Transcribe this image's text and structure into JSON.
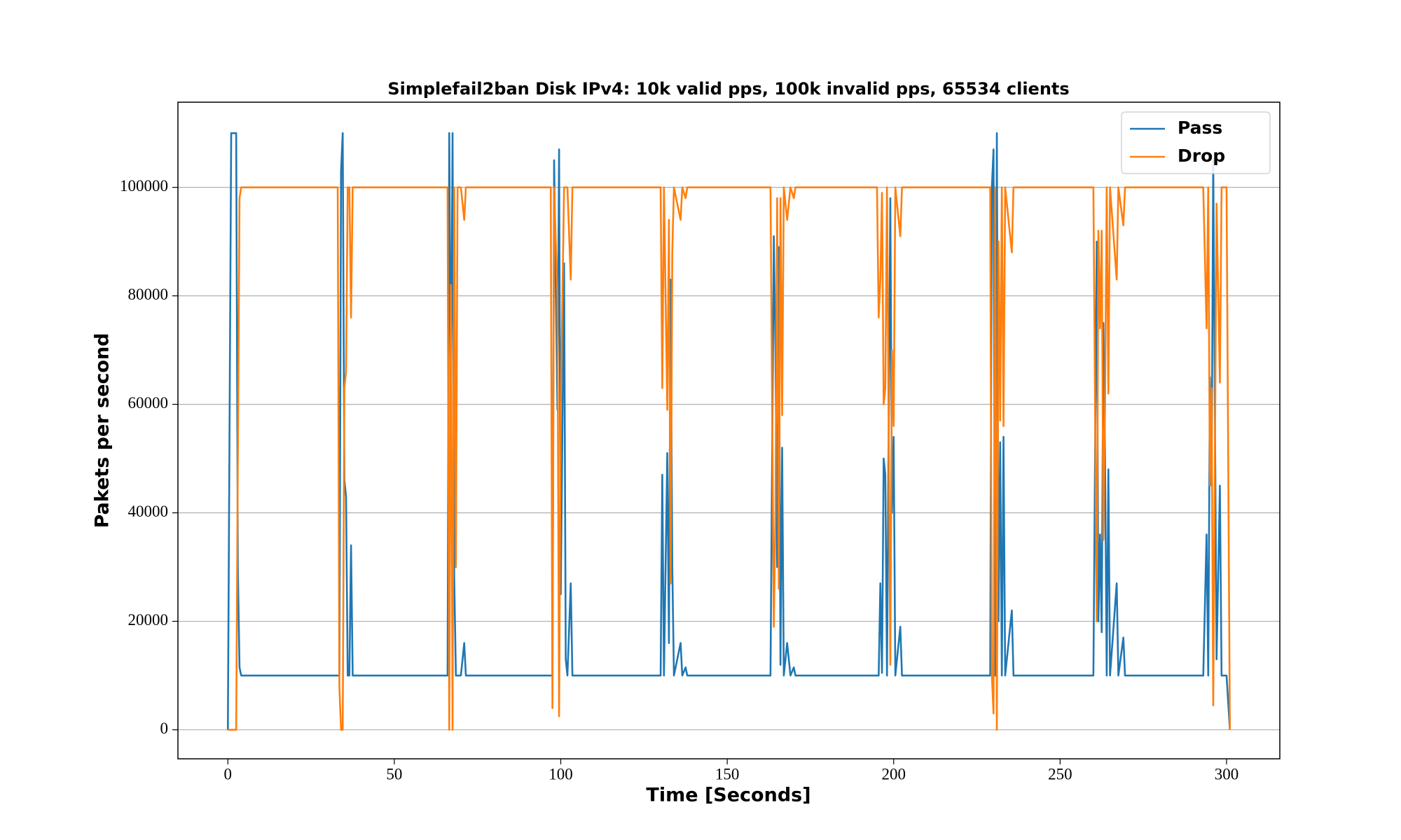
{
  "chart_data": {
    "type": "line",
    "title": "Simplefail2ban Disk IPv4:  10k valid pps, 100k invalid pps, 65534 clients",
    "x_label": "Time [Seconds]",
    "y_label": "Pakets per second",
    "x": [
      0,
      1,
      2.5,
      3,
      3.5,
      4,
      33,
      33.5,
      34,
      34.5,
      35,
      35.5,
      36,
      36.5,
      37,
      37.5,
      38,
      66,
      66.5,
      67,
      67.5,
      68,
      68.5,
      69,
      70,
      71,
      71.5,
      97,
      97.5,
      98,
      99,
      99.5,
      100,
      101,
      101.5,
      102,
      103,
      103.5,
      130,
      130.5,
      131,
      132,
      132.5,
      133,
      133.5,
      134,
      136,
      136.5,
      137.5,
      138,
      163,
      164,
      164.5,
      165,
      165.5,
      166,
      166.5,
      167,
      168,
      169,
      170,
      170.5,
      195,
      195.5,
      196,
      196.5,
      197,
      197.5,
      198,
      199,
      199.5,
      200,
      200.5,
      202,
      202.5,
      229,
      229.5,
      230,
      230.5,
      231,
      231.5,
      232,
      232.5,
      233,
      233.5,
      235.5,
      236,
      260,
      261,
      261.5,
      262,
      262.5,
      263,
      263.5,
      264,
      264.5,
      265,
      267,
      267.5,
      269,
      269.5,
      293,
      294,
      294.5,
      295,
      295.5,
      296,
      297,
      298,
      298.5,
      300,
      301
    ],
    "series": [
      {
        "name": "Pass",
        "color": "#1f77b4",
        "values": [
          0,
          110000,
          110000,
          30000,
          11500,
          10000,
          10000,
          10000,
          103000,
          110000,
          46000,
          43000,
          10000,
          10000,
          34000,
          10000,
          10000,
          10000,
          110000,
          60000,
          110000,
          28000,
          10000,
          10000,
          10000,
          16000,
          10000,
          10000,
          10000,
          105000,
          59000,
          107000,
          25000,
          86000,
          13000,
          10000,
          27000,
          10000,
          10000,
          47000,
          10000,
          51000,
          16000,
          83000,
          30000,
          10000,
          16000,
          10000,
          11500,
          10000,
          10000,
          91000,
          70000,
          30000,
          89000,
          12000,
          52000,
          10000,
          16000,
          10000,
          11500,
          10000,
          10000,
          10000,
          27000,
          10500,
          50000,
          47000,
          10000,
          98000,
          40000,
          54000,
          10000,
          19000,
          10000,
          10000,
          100000,
          107000,
          10000,
          110000,
          20000,
          53000,
          10000,
          54000,
          10000,
          22000,
          10000,
          10000,
          90000,
          20000,
          36000,
          18000,
          75000,
          50000,
          10000,
          48000,
          10000,
          27000,
          10000,
          17000,
          10000,
          10000,
          36000,
          10000,
          65000,
          45000,
          105000,
          13000,
          45000,
          10000,
          10000,
          0
        ]
      },
      {
        "name": "Drop",
        "color": "#ff7f0e",
        "values": [
          0,
          0,
          0,
          50000,
          98000,
          100000,
          100000,
          8000,
          0,
          0,
          63000,
          66000,
          100000,
          100000,
          76000,
          100000,
          100000,
          100000,
          0,
          82000,
          0,
          100000,
          30000,
          100000,
          100000,
          94000,
          100000,
          100000,
          4000,
          100000,
          80000,
          2500,
          60000,
          100000,
          100000,
          100000,
          83000,
          100000,
          100000,
          63000,
          100000,
          59000,
          94000,
          27000,
          88000,
          100000,
          94000,
          100000,
          98000,
          100000,
          100000,
          19000,
          40000,
          98000,
          26000,
          98000,
          58000,
          100000,
          94000,
          100000,
          98000,
          100000,
          100000,
          76000,
          83000,
          99000,
          60000,
          63000,
          100000,
          12000,
          70000,
          56000,
          100000,
          91000,
          100000,
          100000,
          10000,
          3000,
          100000,
          0,
          90000,
          57000,
          100000,
          56000,
          100000,
          88000,
          100000,
          100000,
          20000,
          92000,
          74000,
          92000,
          35000,
          60000,
          100000,
          62000,
          100000,
          83000,
          100000,
          93000,
          100000,
          100000,
          74000,
          100000,
          45000,
          63000,
          4500,
          97000,
          64000,
          100000,
          100000,
          0
        ]
      }
    ],
    "xlim": [
      -15,
      316
    ],
    "ylim": [
      -5350,
      115700
    ],
    "xticks": [
      0,
      50,
      100,
      150,
      200,
      250,
      300
    ],
    "yticks": [
      0,
      20000,
      40000,
      60000,
      80000,
      100000
    ],
    "grid": true,
    "legend": "upper right"
  }
}
